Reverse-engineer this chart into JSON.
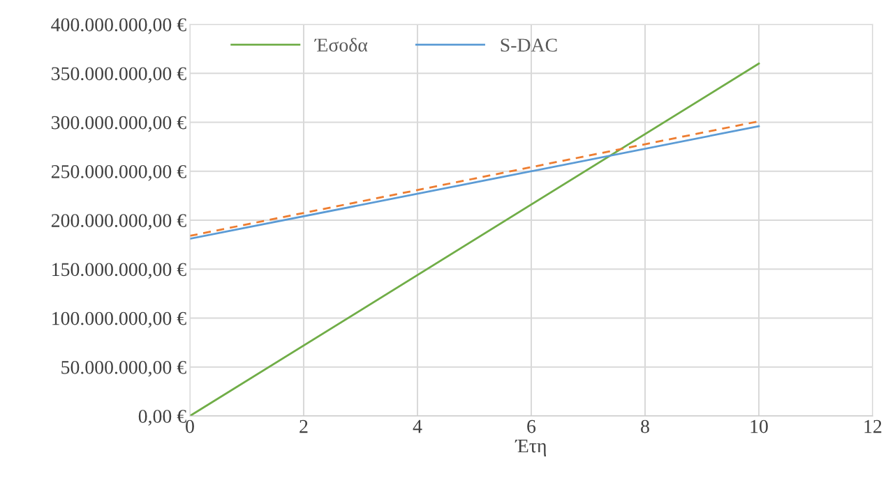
{
  "chart_data": {
    "type": "line",
    "xlabel": "Έτη",
    "xlim": [
      0,
      12
    ],
    "xticks": [
      0,
      2,
      4,
      6,
      8,
      10,
      12
    ],
    "ylim": [
      0,
      400000000
    ],
    "yticks": [
      {
        "value": 0,
        "label": "0,00 €"
      },
      {
        "value": 50000000,
        "label": "50.000.000,00 €"
      },
      {
        "value": 100000000,
        "label": "100.000.000,00 €"
      },
      {
        "value": 150000000,
        "label": "150.000.000,00 €"
      },
      {
        "value": 200000000,
        "label": "200.000.000,00 €"
      },
      {
        "value": 250000000,
        "label": "250.000.000,00 €"
      },
      {
        "value": 300000000,
        "label": "300.000.000,00 €"
      },
      {
        "value": 350000000,
        "label": "350.000.000,00 €"
      },
      {
        "value": 400000000,
        "label": "400.000.000,00 €"
      }
    ],
    "grid": true,
    "legend": "top",
    "x": [
      0,
      10
    ],
    "series": [
      {
        "name": "Έσοδα",
        "color": "#70ad47",
        "values": [
          0,
          360000000
        ]
      },
      {
        "name": "S-DAC",
        "color": "#5b9bd5",
        "values": [
          181000000,
          296000000
        ]
      },
      {
        "color": "#ed7d31",
        "line_style": "dashed",
        "values": [
          184000000,
          301000000
        ]
      }
    ]
  }
}
